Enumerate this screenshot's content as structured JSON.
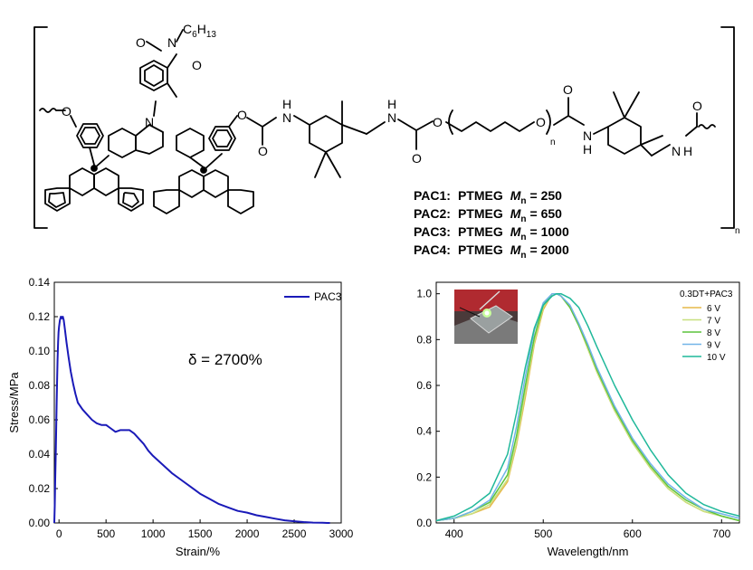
{
  "scheme": {
    "substituent": "C6H13",
    "repeat_index": "n",
    "polymers": [
      {
        "name": "PAC1:",
        "segment": "PTMEG",
        "mn_symbol": "M",
        "mn_sub": "n",
        "eq": "= 250"
      },
      {
        "name": "PAC2:",
        "segment": "PTMEG",
        "mn_symbol": "M",
        "mn_sub": "n",
        "eq": "= 650"
      },
      {
        "name": "PAC3:",
        "segment": "PTMEG",
        "mn_symbol": "M",
        "mn_sub": "n",
        "eq": "= 1000"
      },
      {
        "name": "PAC4:",
        "segment": "PTMEG",
        "mn_symbol": "M",
        "mn_sub": "n",
        "eq": "= 2000"
      }
    ]
  },
  "chart_data": [
    {
      "type": "line",
      "xlabel": "Strain/%",
      "ylabel": "Stress/MPa",
      "xlim": [
        -50,
        3000
      ],
      "ylim": [
        0,
        0.14
      ],
      "xticks": [
        0,
        500,
        1000,
        1500,
        2000,
        2500,
        3000
      ],
      "yticks": [
        0.0,
        0.02,
        0.04,
        0.06,
        0.08,
        0.1,
        0.12,
        0.14
      ],
      "yticklabels": [
        "0.00",
        "0.02",
        "0.04",
        "0.06",
        "0.08",
        "0.10",
        "0.12",
        "0.14"
      ],
      "legend": "top-right",
      "annotation": "δ = 2700%",
      "series": [
        {
          "name": "PAC3",
          "color": "#1a1ab8",
          "x": [
            -50,
            -45,
            -40,
            -35,
            -30,
            -25,
            -20,
            -15,
            -10,
            -5,
            0,
            10,
            20,
            30,
            40,
            50,
            60,
            80,
            100,
            125,
            150,
            175,
            200,
            250,
            300,
            350,
            400,
            450,
            500,
            550,
            600,
            650,
            700,
            750,
            800,
            850,
            900,
            950,
            1000,
            1100,
            1200,
            1300,
            1400,
            1500,
            1600,
            1700,
            1800,
            1900,
            2000,
            2100,
            2200,
            2300,
            2400,
            2500,
            2600,
            2700,
            2800,
            2850,
            2880
          ],
          "y": [
            0.0,
            0.01,
            0.025,
            0.04,
            0.055,
            0.07,
            0.083,
            0.095,
            0.105,
            0.111,
            0.114,
            0.118,
            0.12,
            0.119,
            0.12,
            0.118,
            0.114,
            0.105,
            0.097,
            0.088,
            0.081,
            0.075,
            0.07,
            0.066,
            0.063,
            0.06,
            0.058,
            0.057,
            0.057,
            0.055,
            0.053,
            0.054,
            0.054,
            0.054,
            0.052,
            0.049,
            0.046,
            0.042,
            0.039,
            0.034,
            0.029,
            0.025,
            0.021,
            0.017,
            0.014,
            0.011,
            0.009,
            0.007,
            0.006,
            0.0045,
            0.0035,
            0.0025,
            0.0015,
            0.001,
            0.0005,
            0.0002,
            0.0001,
            0.0,
            0.0
          ]
        }
      ]
    },
    {
      "type": "line",
      "xlabel": "Wavelength/nm",
      "ylabel": "",
      "xlim": [
        380,
        720
      ],
      "ylim": [
        0,
        1.05
      ],
      "xticks": [
        400,
        500,
        600,
        700
      ],
      "yticks": [
        0.0,
        0.2,
        0.4,
        0.6,
        0.8,
        1.0
      ],
      "yticklabels": [
        "0.0",
        "0.2",
        "0.4",
        "0.6",
        "0.8",
        "1.0"
      ],
      "legend": "top-right",
      "legend_title": "0.3DT+PAC3",
      "inset": "device photograph (top-left)",
      "series": [
        {
          "name": "6 V",
          "color": "#e6b84a",
          "x": [
            380,
            400,
            420,
            440,
            460,
            470,
            480,
            490,
            500,
            510,
            515,
            520,
            530,
            540,
            550,
            560,
            580,
            600,
            620,
            640,
            660,
            680,
            700,
            720
          ],
          "y": [
            0.01,
            0.02,
            0.04,
            0.07,
            0.18,
            0.34,
            0.55,
            0.78,
            0.93,
            1.0,
            1.0,
            0.99,
            0.94,
            0.86,
            0.76,
            0.66,
            0.49,
            0.35,
            0.24,
            0.15,
            0.09,
            0.05,
            0.03,
            0.01
          ]
        },
        {
          "name": "7 V",
          "color": "#c8e07e",
          "x": [
            380,
            400,
            420,
            440,
            460,
            470,
            480,
            490,
            500,
            510,
            515,
            520,
            530,
            540,
            550,
            560,
            580,
            600,
            620,
            640,
            660,
            680,
            700,
            720
          ],
          "y": [
            0.01,
            0.02,
            0.04,
            0.08,
            0.19,
            0.35,
            0.57,
            0.79,
            0.94,
            1.0,
            1.0,
            0.99,
            0.94,
            0.86,
            0.76,
            0.66,
            0.49,
            0.35,
            0.24,
            0.15,
            0.09,
            0.05,
            0.03,
            0.01
          ]
        },
        {
          "name": "8 V",
          "color": "#5cc43c",
          "x": [
            380,
            400,
            420,
            440,
            460,
            470,
            480,
            490,
            500,
            510,
            515,
            520,
            530,
            540,
            550,
            560,
            580,
            600,
            620,
            640,
            660,
            680,
            700,
            720
          ],
          "y": [
            0.01,
            0.02,
            0.05,
            0.09,
            0.21,
            0.38,
            0.6,
            0.81,
            0.95,
            1.0,
            1.0,
            0.99,
            0.94,
            0.86,
            0.77,
            0.67,
            0.5,
            0.36,
            0.25,
            0.16,
            0.1,
            0.06,
            0.03,
            0.01
          ]
        },
        {
          "name": "9 V",
          "color": "#72b4e8",
          "x": [
            380,
            400,
            420,
            440,
            460,
            470,
            480,
            490,
            500,
            510,
            515,
            520,
            530,
            540,
            550,
            560,
            580,
            600,
            620,
            640,
            660,
            680,
            700,
            720
          ],
          "y": [
            0.01,
            0.02,
            0.05,
            0.1,
            0.24,
            0.42,
            0.64,
            0.84,
            0.96,
            1.0,
            1.0,
            0.99,
            0.95,
            0.87,
            0.78,
            0.68,
            0.51,
            0.37,
            0.26,
            0.17,
            0.11,
            0.06,
            0.04,
            0.02
          ]
        },
        {
          "name": "10 V",
          "color": "#1fb89a",
          "x": [
            380,
            400,
            420,
            440,
            460,
            470,
            480,
            490,
            500,
            510,
            515,
            520,
            530,
            540,
            550,
            560,
            580,
            600,
            620,
            640,
            660,
            680,
            700,
            720
          ],
          "y": [
            0.01,
            0.03,
            0.07,
            0.13,
            0.3,
            0.48,
            0.68,
            0.85,
            0.95,
            0.99,
            1.0,
            1.0,
            0.98,
            0.94,
            0.86,
            0.77,
            0.6,
            0.45,
            0.32,
            0.21,
            0.13,
            0.08,
            0.05,
            0.03
          ]
        }
      ]
    }
  ]
}
